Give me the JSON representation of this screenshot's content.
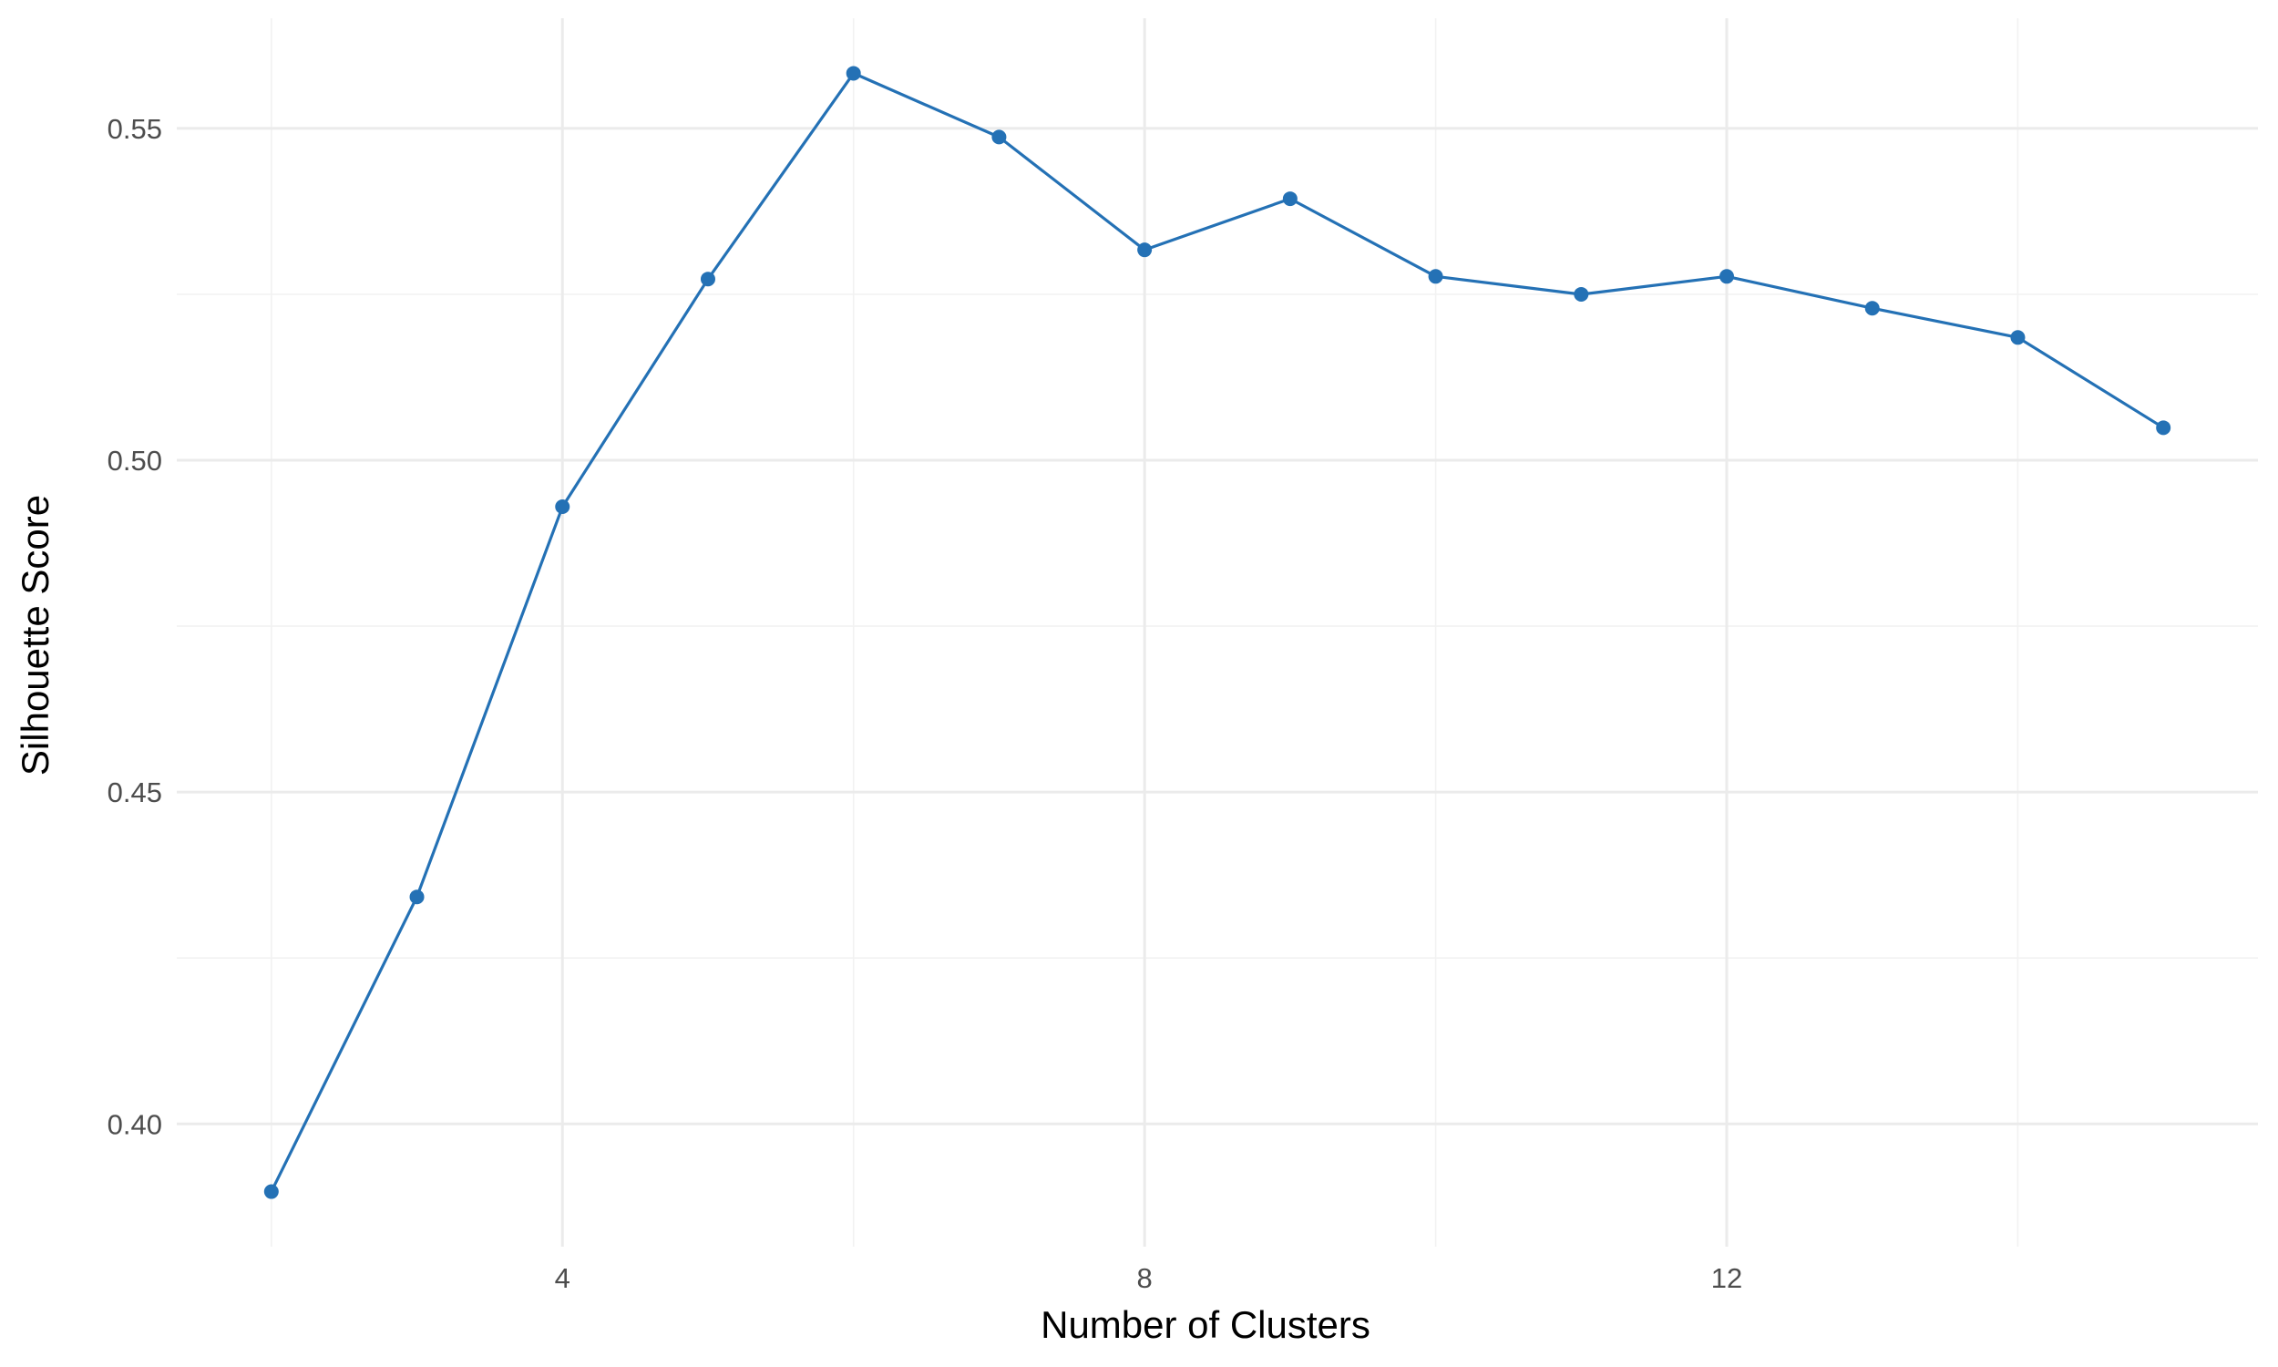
{
  "chart_data": {
    "type": "line",
    "title": "",
    "xlabel": "Number of Clusters",
    "ylabel": "Silhouette Score",
    "x": [
      2,
      3,
      4,
      5,
      6,
      7,
      8,
      9,
      10,
      11,
      12,
      13,
      14,
      15
    ],
    "series": [
      {
        "values": [
          0.3898,
          0.4342,
          0.493,
          0.5273,
          0.5583,
          0.5487,
          0.5317,
          0.5394,
          0.5277,
          0.525,
          0.5277,
          0.5229,
          0.5185,
          0.5049
        ],
        "color": "#2471b5"
      }
    ],
    "xlim": [
      1.35,
      15.65
    ],
    "ylim": [
      0.3815,
      0.5666
    ],
    "x_ticks": [
      4,
      8,
      12
    ],
    "x_tick_labels": [
      "4",
      "8",
      "12"
    ],
    "y_ticks": [
      0.4,
      0.45,
      0.5,
      0.55
    ],
    "y_tick_labels": [
      "0.40",
      "0.45",
      "0.50",
      "0.55"
    ],
    "x_minor_ticks": [
      2,
      6,
      10,
      14
    ],
    "y_minor_ticks": [
      0.425,
      0.475,
      0.525
    ],
    "grid": true,
    "legend": "none"
  }
}
